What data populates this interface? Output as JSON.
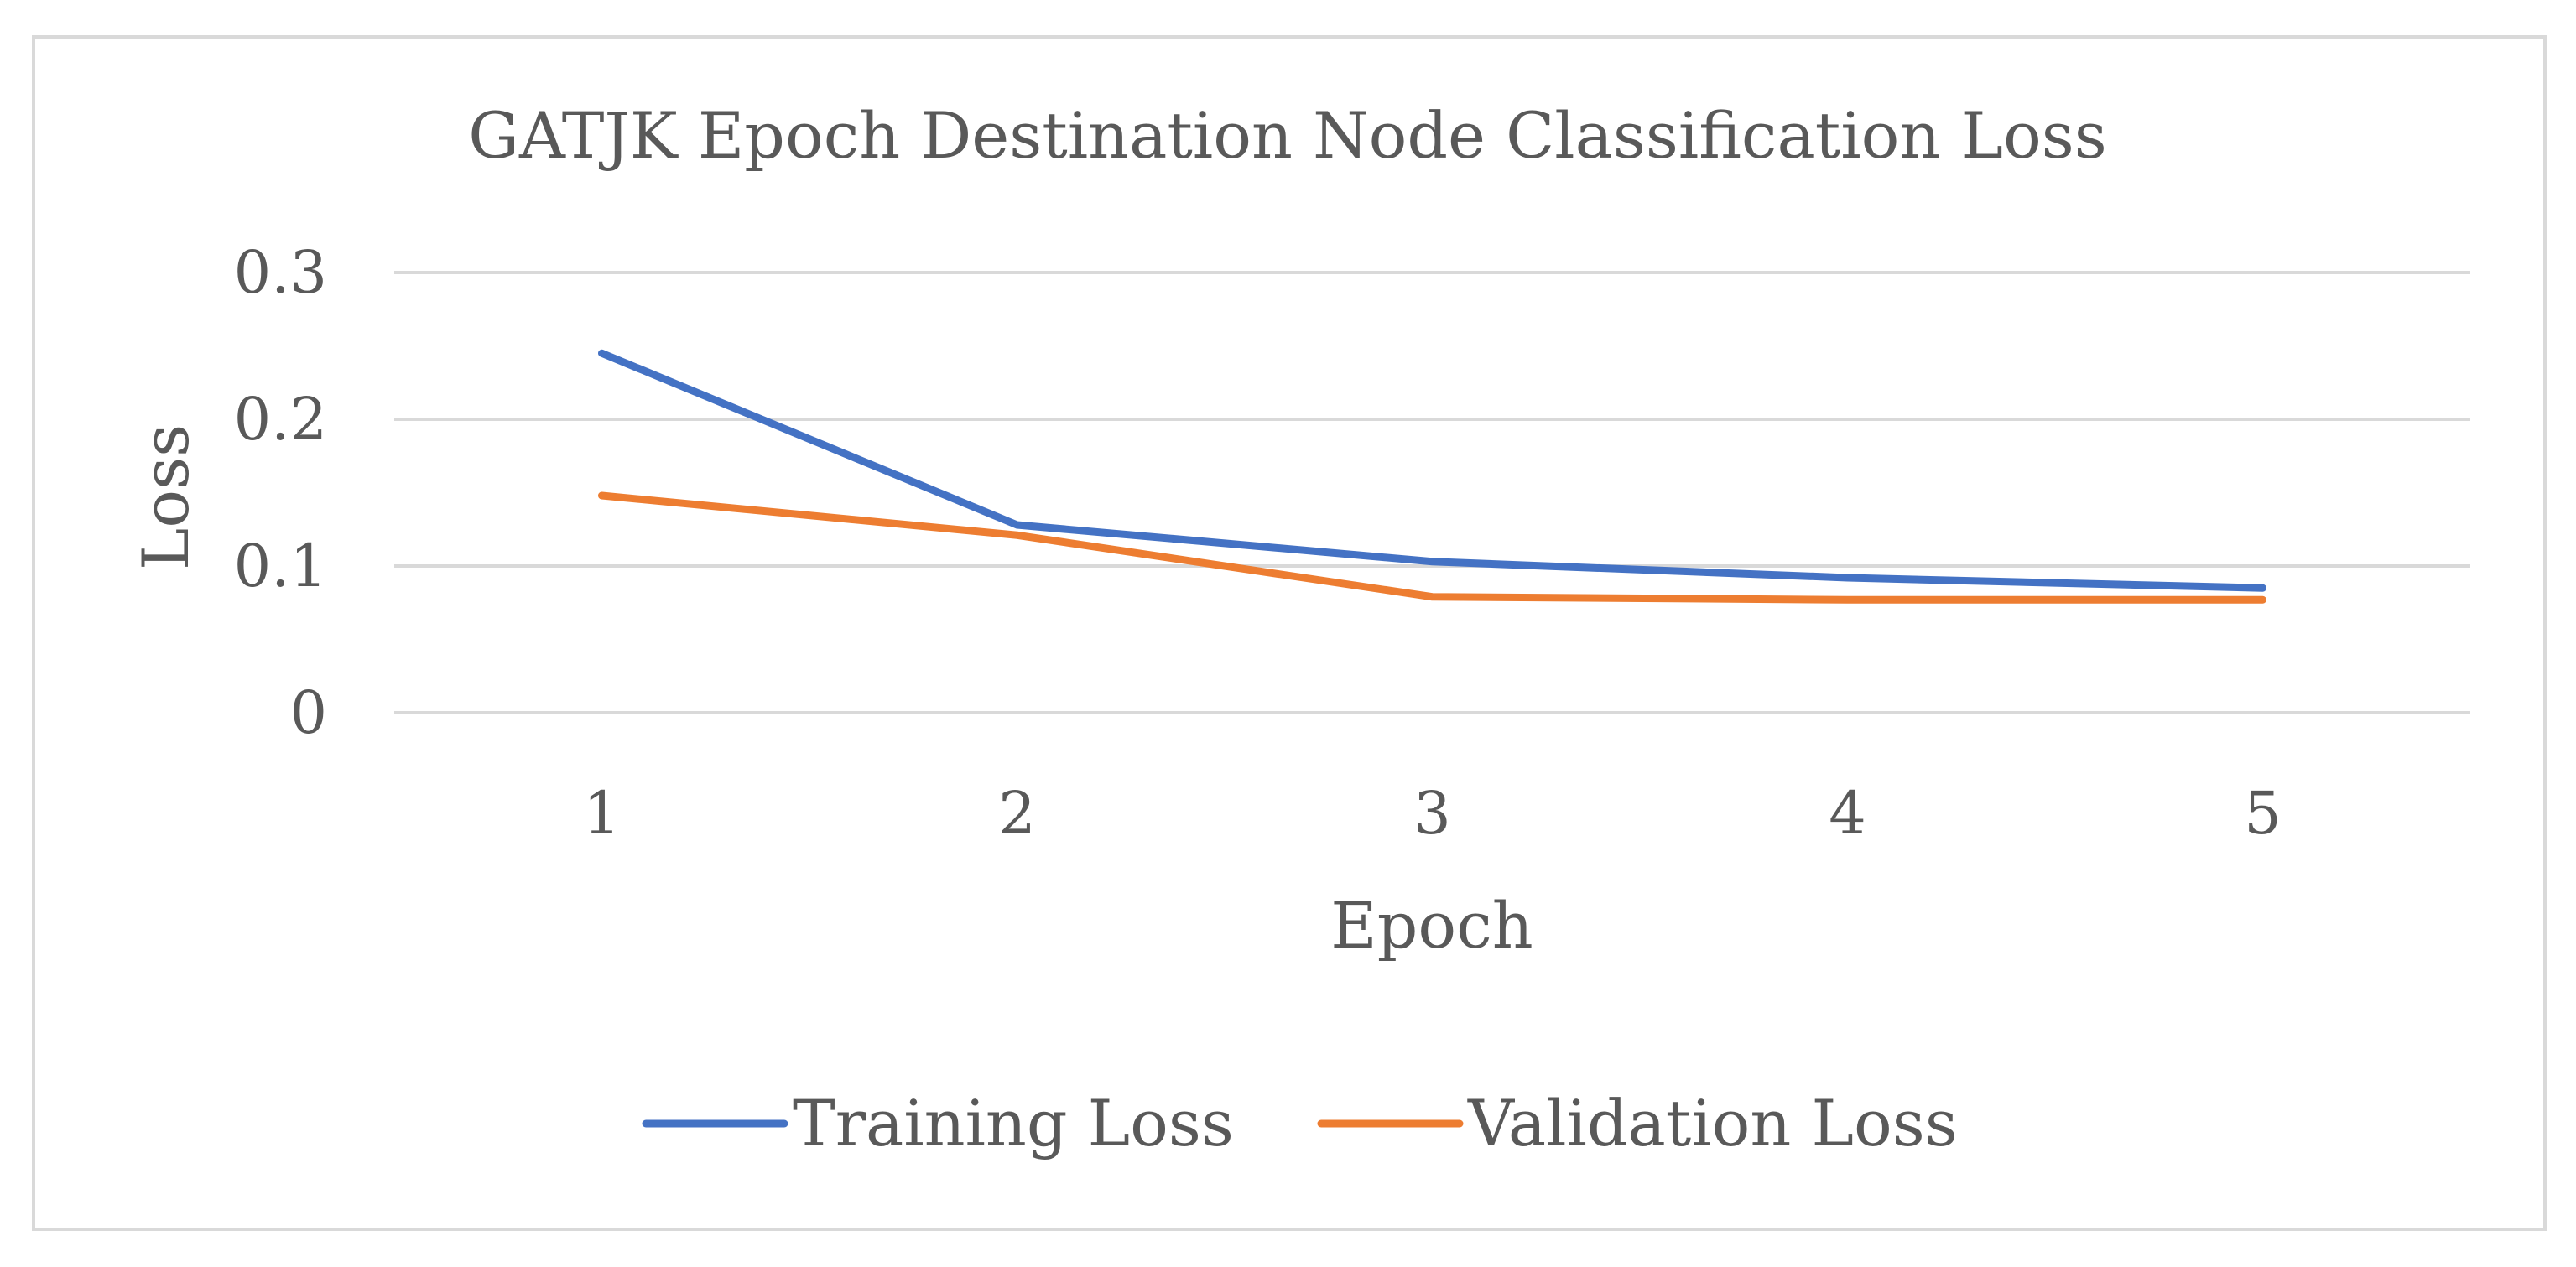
{
  "chart_data": {
    "type": "line",
    "title": "GATJK Epoch Destination Node Classification Loss",
    "xlabel": "Epoch",
    "ylabel": "Loss",
    "categories": [
      "1",
      "2",
      "3",
      "4",
      "5"
    ],
    "y_ticks": [
      "0",
      "0.1",
      "0.2",
      "0.3"
    ],
    "ylim": [
      0,
      0.3
    ],
    "grid": true,
    "legend_position": "bottom",
    "series": [
      {
        "name": "Training Loss",
        "color": "#4472C4",
        "values": [
          0.245,
          0.128,
          0.103,
          0.092,
          0.085
        ]
      },
      {
        "name": "Validation Loss",
        "color": "#ED7D31",
        "values": [
          0.148,
          0.121,
          0.079,
          0.077,
          0.077
        ]
      }
    ]
  }
}
